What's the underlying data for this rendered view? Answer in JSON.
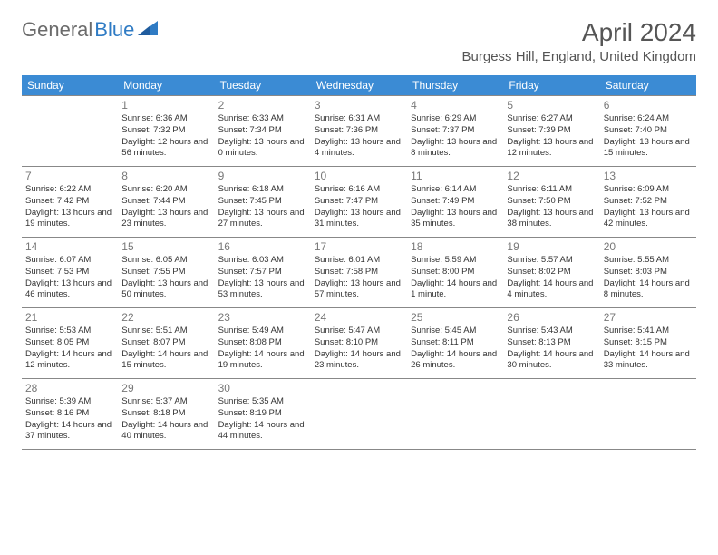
{
  "brand": {
    "part1": "General",
    "part2": "Blue",
    "icon_color": "#2f7bc4"
  },
  "title": "April 2024",
  "location": "Burgess Hill, England, United Kingdom",
  "header_bg": "#3b8bd4",
  "header_fg": "#ffffff",
  "border_color": "#888888",
  "days_of_week": [
    "Sunday",
    "Monday",
    "Tuesday",
    "Wednesday",
    "Thursday",
    "Friday",
    "Saturday"
  ],
  "weeks": [
    [
      null,
      {
        "n": "1",
        "sr": "6:36 AM",
        "ss": "7:32 PM",
        "dl": "12 hours and 56 minutes."
      },
      {
        "n": "2",
        "sr": "6:33 AM",
        "ss": "7:34 PM",
        "dl": "13 hours and 0 minutes."
      },
      {
        "n": "3",
        "sr": "6:31 AM",
        "ss": "7:36 PM",
        "dl": "13 hours and 4 minutes."
      },
      {
        "n": "4",
        "sr": "6:29 AM",
        "ss": "7:37 PM",
        "dl": "13 hours and 8 minutes."
      },
      {
        "n": "5",
        "sr": "6:27 AM",
        "ss": "7:39 PM",
        "dl": "13 hours and 12 minutes."
      },
      {
        "n": "6",
        "sr": "6:24 AM",
        "ss": "7:40 PM",
        "dl": "13 hours and 15 minutes."
      }
    ],
    [
      {
        "n": "7",
        "sr": "6:22 AM",
        "ss": "7:42 PM",
        "dl": "13 hours and 19 minutes."
      },
      {
        "n": "8",
        "sr": "6:20 AM",
        "ss": "7:44 PM",
        "dl": "13 hours and 23 minutes."
      },
      {
        "n": "9",
        "sr": "6:18 AM",
        "ss": "7:45 PM",
        "dl": "13 hours and 27 minutes."
      },
      {
        "n": "10",
        "sr": "6:16 AM",
        "ss": "7:47 PM",
        "dl": "13 hours and 31 minutes."
      },
      {
        "n": "11",
        "sr": "6:14 AM",
        "ss": "7:49 PM",
        "dl": "13 hours and 35 minutes."
      },
      {
        "n": "12",
        "sr": "6:11 AM",
        "ss": "7:50 PM",
        "dl": "13 hours and 38 minutes."
      },
      {
        "n": "13",
        "sr": "6:09 AM",
        "ss": "7:52 PM",
        "dl": "13 hours and 42 minutes."
      }
    ],
    [
      {
        "n": "14",
        "sr": "6:07 AM",
        "ss": "7:53 PM",
        "dl": "13 hours and 46 minutes."
      },
      {
        "n": "15",
        "sr": "6:05 AM",
        "ss": "7:55 PM",
        "dl": "13 hours and 50 minutes."
      },
      {
        "n": "16",
        "sr": "6:03 AM",
        "ss": "7:57 PM",
        "dl": "13 hours and 53 minutes."
      },
      {
        "n": "17",
        "sr": "6:01 AM",
        "ss": "7:58 PM",
        "dl": "13 hours and 57 minutes."
      },
      {
        "n": "18",
        "sr": "5:59 AM",
        "ss": "8:00 PM",
        "dl": "14 hours and 1 minute."
      },
      {
        "n": "19",
        "sr": "5:57 AM",
        "ss": "8:02 PM",
        "dl": "14 hours and 4 minutes."
      },
      {
        "n": "20",
        "sr": "5:55 AM",
        "ss": "8:03 PM",
        "dl": "14 hours and 8 minutes."
      }
    ],
    [
      {
        "n": "21",
        "sr": "5:53 AM",
        "ss": "8:05 PM",
        "dl": "14 hours and 12 minutes."
      },
      {
        "n": "22",
        "sr": "5:51 AM",
        "ss": "8:07 PM",
        "dl": "14 hours and 15 minutes."
      },
      {
        "n": "23",
        "sr": "5:49 AM",
        "ss": "8:08 PM",
        "dl": "14 hours and 19 minutes."
      },
      {
        "n": "24",
        "sr": "5:47 AM",
        "ss": "8:10 PM",
        "dl": "14 hours and 23 minutes."
      },
      {
        "n": "25",
        "sr": "5:45 AM",
        "ss": "8:11 PM",
        "dl": "14 hours and 26 minutes."
      },
      {
        "n": "26",
        "sr": "5:43 AM",
        "ss": "8:13 PM",
        "dl": "14 hours and 30 minutes."
      },
      {
        "n": "27",
        "sr": "5:41 AM",
        "ss": "8:15 PM",
        "dl": "14 hours and 33 minutes."
      }
    ],
    [
      {
        "n": "28",
        "sr": "5:39 AM",
        "ss": "8:16 PM",
        "dl": "14 hours and 37 minutes."
      },
      {
        "n": "29",
        "sr": "5:37 AM",
        "ss": "8:18 PM",
        "dl": "14 hours and 40 minutes."
      },
      {
        "n": "30",
        "sr": "5:35 AM",
        "ss": "8:19 PM",
        "dl": "14 hours and 44 minutes."
      },
      null,
      null,
      null,
      null
    ]
  ],
  "labels": {
    "sunrise": "Sunrise:",
    "sunset": "Sunset:",
    "daylight": "Daylight:"
  }
}
